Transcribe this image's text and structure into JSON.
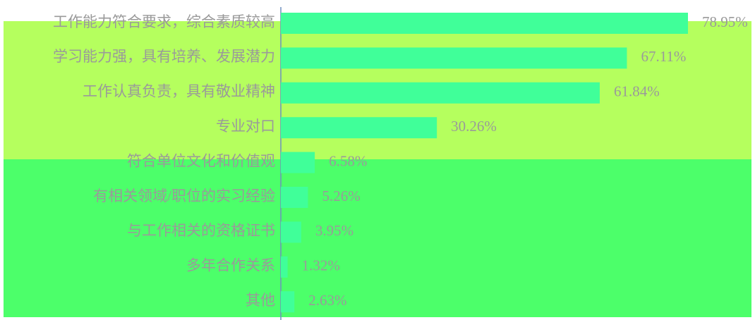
{
  "chart_data": {
    "type": "barh",
    "categories": [
      "工作能力符合要求，综合素质较高",
      "学习能力强，具有培养、发展潜力",
      "工作认真负责，具有敬业精神",
      "专业对口",
      "符合单位文化和价值观",
      "有相关领域/职位的实习经验",
      "与工作相关的资格证书",
      "多年合作关系",
      "其他"
    ],
    "values": [
      78.95,
      67.11,
      61.84,
      30.26,
      6.58,
      5.26,
      3.95,
      1.32,
      2.63
    ],
    "value_labels": [
      "78.95%",
      "67.11%",
      "61.84%",
      "30.26%",
      "6.58%",
      "5.26%",
      "3.95%",
      "1.32%",
      "2.63%"
    ],
    "color": "#40ff99"
  }
}
